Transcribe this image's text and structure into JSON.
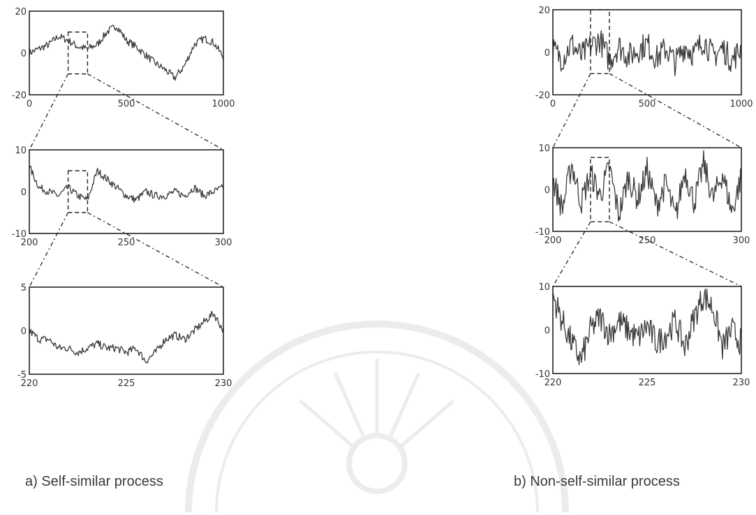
{
  "colors": {
    "ink": "#2a2a2a",
    "background": "#ffffff"
  },
  "watermark": "seal-watermark",
  "captions": {
    "left": "a)  Self-similar process",
    "right": "b) Non-self-similar process"
  },
  "chart_data": [
    {
      "type": "line",
      "panel": "self-similar-top",
      "xlim": [
        0,
        1000
      ],
      "ylim": [
        -20,
        20
      ],
      "xticks": [
        "0",
        "500",
        "1000"
      ],
      "yticks": [
        "20",
        "0",
        "-20"
      ],
      "zoom_box": {
        "x": [
          200,
          300
        ],
        "y": [
          -10,
          10
        ]
      },
      "series": [
        {
          "x": [
            0,
            50,
            100,
            150,
            200,
            250,
            300,
            350,
            400,
            450,
            500,
            550,
            600,
            650,
            700,
            750,
            800,
            850,
            900,
            950,
            1000
          ],
          "y": [
            0,
            2,
            4,
            8,
            6,
            3,
            2,
            4,
            10,
            13,
            6,
            3,
            -1,
            -5,
            -8,
            -12,
            -6,
            4,
            7,
            5,
            -2
          ]
        }
      ]
    },
    {
      "type": "line",
      "panel": "self-similar-middle",
      "xlim": [
        200,
        300
      ],
      "ylim": [
        -10,
        10
      ],
      "xticks": [
        "200",
        "250",
        "300"
      ],
      "yticks": [
        "10",
        "0",
        "-10"
      ],
      "zoom_box": {
        "x": [
          220,
          230
        ],
        "y": [
          -5,
          5
        ]
      },
      "series": [
        {
          "x": [
            200,
            205,
            210,
            215,
            220,
            225,
            230,
            235,
            240,
            245,
            250,
            255,
            260,
            265,
            270,
            275,
            280,
            285,
            290,
            295,
            300
          ],
          "y": [
            6,
            1,
            0,
            -1,
            1,
            -1,
            -2,
            5,
            3,
            1,
            -1,
            -2,
            0,
            -1,
            -1,
            0,
            -1,
            1,
            -1,
            0,
            1
          ]
        }
      ]
    },
    {
      "type": "line",
      "panel": "self-similar-bottom",
      "xlim": [
        220,
        230
      ],
      "ylim": [
        -5,
        5
      ],
      "xticks": [
        "220",
        "225",
        "230"
      ],
      "yticks": [
        "5",
        "0",
        "-5"
      ],
      "series": [
        {
          "x": [
            220,
            220.5,
            221,
            221.5,
            222,
            222.5,
            223,
            223.5,
            224,
            224.5,
            225,
            225.5,
            226,
            226.5,
            227,
            227.5,
            228,
            228.5,
            229,
            229.5,
            230
          ],
          "y": [
            0,
            -1,
            -1,
            -2,
            -2,
            -2.5,
            -2,
            -1.5,
            -2,
            -2,
            -2.5,
            -2,
            -3.5,
            -2.5,
            -1,
            -0.5,
            -1,
            0,
            1,
            2,
            0
          ]
        }
      ]
    },
    {
      "type": "line",
      "panel": "non-self-similar-top",
      "xlim": [
        0,
        1000
      ],
      "ylim": [
        -20,
        20
      ],
      "xticks": [
        "0",
        "500",
        "1000"
      ],
      "yticks": [
        "20",
        "0",
        "-20"
      ],
      "zoom_box": {
        "x": [
          200,
          300
        ],
        "y": [
          -10,
          20
        ]
      },
      "series": [
        {
          "x": [
            0,
            50,
            100,
            150,
            200,
            250,
            300,
            350,
            400,
            450,
            500,
            550,
            600,
            650,
            700,
            750,
            800,
            850,
            900,
            950,
            1000
          ],
          "y": [
            1,
            -3,
            4,
            -2,
            3,
            6,
            -4,
            3,
            -2,
            1,
            4,
            -3,
            2,
            -5,
            3,
            -1,
            6,
            -2,
            2,
            -4,
            2
          ]
        }
      ]
    },
    {
      "type": "line",
      "panel": "non-self-similar-middle",
      "xlim": [
        200,
        300
      ],
      "ylim": [
        -13,
        13
      ],
      "xticks": [
        "200",
        "250",
        "300"
      ],
      "yticks": [
        "10",
        "0",
        "-10"
      ],
      "zoom_box": {
        "x": [
          220,
          230
        ],
        "y": [
          -10,
          10
        ]
      },
      "series": [
        {
          "x": [
            200,
            205,
            210,
            215,
            220,
            225,
            230,
            235,
            240,
            245,
            250,
            255,
            260,
            265,
            270,
            275,
            280,
            285,
            290,
            295,
            300
          ],
          "y": [
            3,
            -6,
            8,
            -4,
            5,
            -2,
            7,
            -8,
            4,
            -3,
            6,
            -5,
            2,
            -9,
            6,
            -4,
            8,
            -3,
            5,
            -7,
            4
          ]
        }
      ]
    },
    {
      "type": "line",
      "panel": "non-self-similar-bottom",
      "xlim": [
        220,
        230
      ],
      "ylim": [
        -10,
        10
      ],
      "xticks": [
        "220",
        "225",
        "230"
      ],
      "yticks": [
        "10",
        "0",
        "-10"
      ],
      "series": [
        {
          "x": [
            220,
            220.5,
            221,
            221.5,
            222,
            222.5,
            223,
            223.5,
            224,
            224.5,
            225,
            225.5,
            226,
            226.5,
            227,
            227.5,
            228,
            228.5,
            229,
            229.5,
            230
          ],
          "y": [
            8,
            2,
            -3,
            -7,
            0,
            3,
            -1,
            2,
            0,
            -2,
            1,
            -3,
            -1,
            2,
            -4,
            3,
            8,
            5,
            -4,
            0,
            -3
          ]
        }
      ]
    }
  ]
}
